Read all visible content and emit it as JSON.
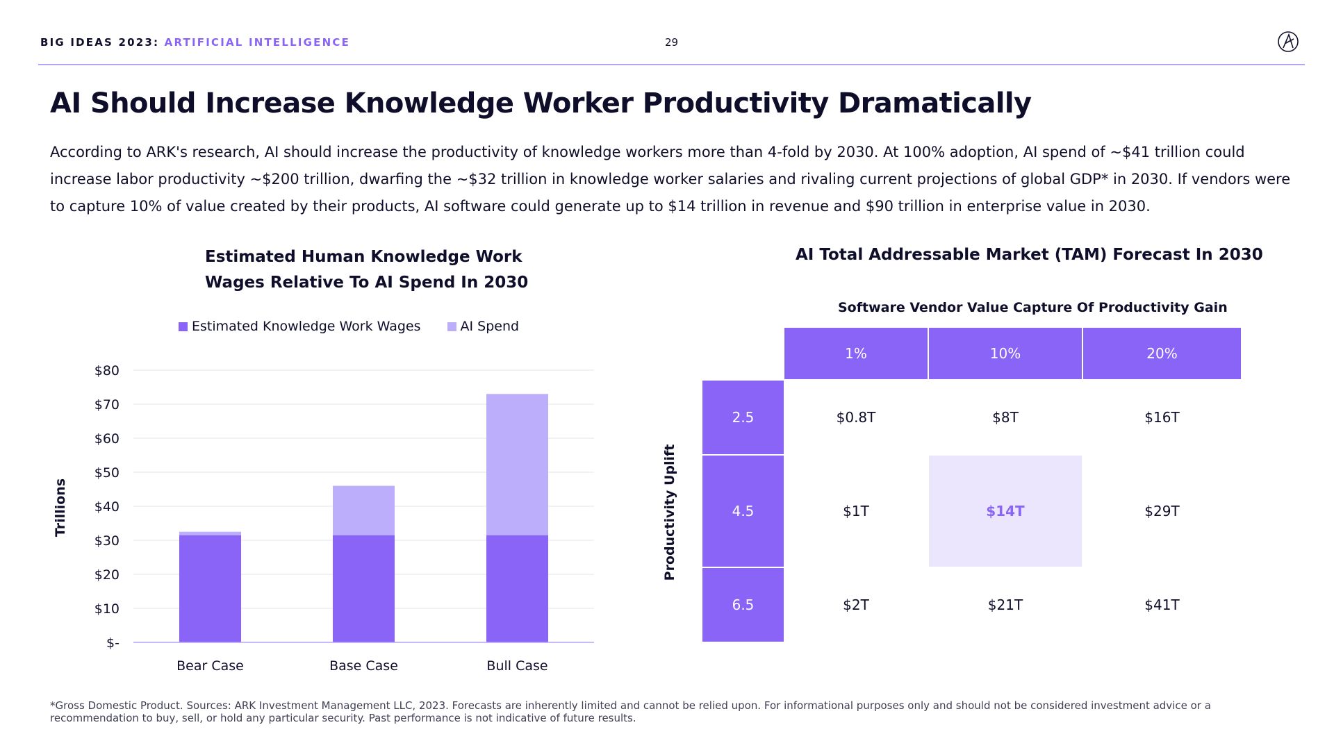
{
  "header": {
    "prefix": "BIG IDEAS 2023:",
    "section": "ARTIFICIAL INTELLIGENCE",
    "page_number": "29",
    "logo_icon": "ark-logo-icon"
  },
  "title": "AI Should Increase Knowledge Worker Productivity Dramatically",
  "intro": "According to ARK's research, AI should increase the productivity of knowledge workers more than 4-fold by 2030. At 100% adoption, AI spend of ~$41 trillion could increase labor productivity ~$200 trillion, dwarfing the ~$32 trillion in knowledge worker salaries and rivaling current projections of global GDP* in 2030. If vendors were to capture 10% of value created by their products, AI software could generate up to $14 trillion in revenue and $90 trillion in enterprise value in 2030.",
  "colors": {
    "accent": "#8a63f7",
    "light_accent": "#bcaefa",
    "highlight_bg": "#ebe6fd",
    "text": "#0f0e2a"
  },
  "chart_data": [
    {
      "type": "bar",
      "stacked": true,
      "title": "Estimated Human Knowledge Work\nWages Relative To AI Spend In 2030",
      "ylabel": "Trillions",
      "xlabel": "",
      "categories": [
        "Bear Case",
        "Base Case",
        "Bull Case"
      ],
      "series": [
        {
          "name": "Estimated Knowledge Work Wages",
          "color": "#8a63f7",
          "values": [
            31.5,
            31.5,
            31.5
          ]
        },
        {
          "name": "AI Spend",
          "color": "#bcaefa",
          "values": [
            1,
            14.5,
            41.5
          ]
        }
      ],
      "ylim": [
        0,
        80
      ],
      "yticks": [
        0,
        10,
        20,
        30,
        40,
        50,
        60,
        70,
        80
      ],
      "ytick_labels": [
        "$-",
        "$10",
        "$20",
        "$30",
        "$40",
        "$50",
        "$60",
        "$70",
        "$80"
      ],
      "grid": true,
      "legend_position": "top"
    },
    {
      "type": "table",
      "title": "AI Total Addressable Market (TAM) Forecast In 2030",
      "column_group_label": "Software Vendor Value Capture Of Productivity Gain",
      "row_group_label": "Productivity Uplift",
      "columns": [
        "1%",
        "10%",
        "20%"
      ],
      "rows": [
        "2.5",
        "4.5",
        "6.5"
      ],
      "cells": [
        [
          "$0.8T",
          "$8T",
          "$16T"
        ],
        [
          "$1T",
          "$14T",
          "$29T"
        ],
        [
          "$2T",
          "$21T",
          "$41T"
        ]
      ],
      "highlighted_cell": "$14T"
    }
  ],
  "footnote": "*Gross Domestic Product. Sources: ARK Investment Management LLC, 2023. Forecasts are inherently limited and cannot be relied upon. For informational purposes only and should not be considered investment advice or a recommendation to buy, sell, or hold any particular security. Past performance is not indicative of future results."
}
